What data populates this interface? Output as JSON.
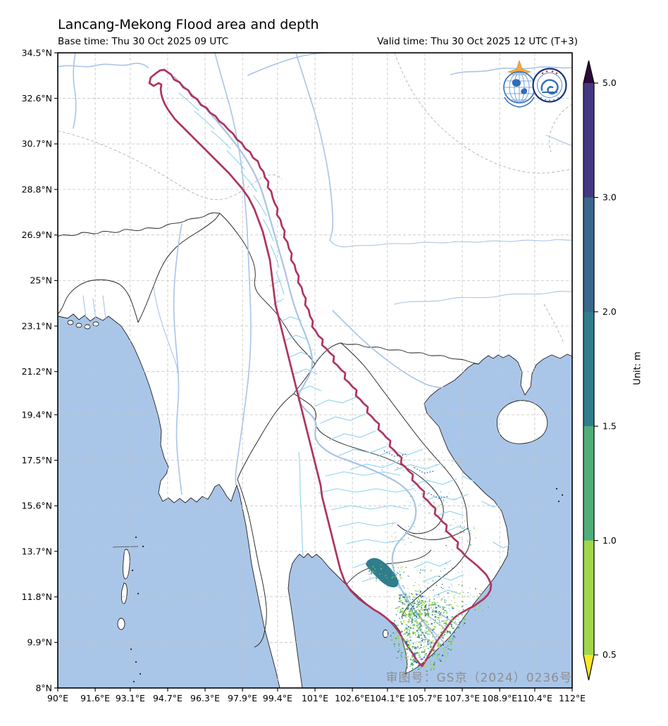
{
  "header": {
    "title": "Lancang-Mekong Flood area and depth",
    "base_time": "Base time: Thu 30 Oct 2025 09 UTC",
    "valid_time": "Valid time: Thu 30 Oct 2025 12 UTC (T+3)"
  },
  "axes": {
    "x_ticks": [
      "90°E",
      "91.6°E",
      "93.1°E",
      "94.7°E",
      "96.3°E",
      "97.9°E",
      "99.4°E",
      "101°E",
      "102.6°E",
      "104.1°E",
      "105.7°E",
      "107.3°E",
      "108.9°E",
      "110.4°E",
      "112°E"
    ],
    "y_ticks": [
      "34.5°N",
      "32.6°N",
      "30.7°N",
      "28.8°N",
      "26.9°N",
      "25°N",
      "23.1°N",
      "21.2°N",
      "19.4°N",
      "17.5°N",
      "15.6°N",
      "13.7°N",
      "11.8°N",
      "9.9°N",
      "8°N"
    ]
  },
  "colorbar": {
    "unit_label": "Unit: m",
    "tick_labels": [
      "5.0",
      "3.0",
      "2.0",
      "1.5",
      "1.0",
      "0.5"
    ],
    "segment_colors_top_to_bottom": [
      "#453882",
      "#3a678c",
      "#2f7e8c",
      "#4faf7b",
      "#a2d64a"
    ],
    "over_arrow_color": "#2e0a3c",
    "under_arrow_color": "#fde725"
  },
  "map": {
    "watermark": "审图号：GS京（2024）0236号",
    "icons": {
      "wmo_logo": "wmo-globe-logo",
      "cma_logo": "cma-cloud-logo"
    },
    "colors": {
      "ocean": "#a9c6e9",
      "land": "#ffffff",
      "basin_outline": "#ad3460",
      "main_river": "#a9c4e6",
      "tributary": "#8ed2f0",
      "flood_light": "#a2d64a",
      "flood_mid": "#4faf7b",
      "flood_deep": "#2f7e8c",
      "flood_blue": "#3a6bc0"
    }
  }
}
